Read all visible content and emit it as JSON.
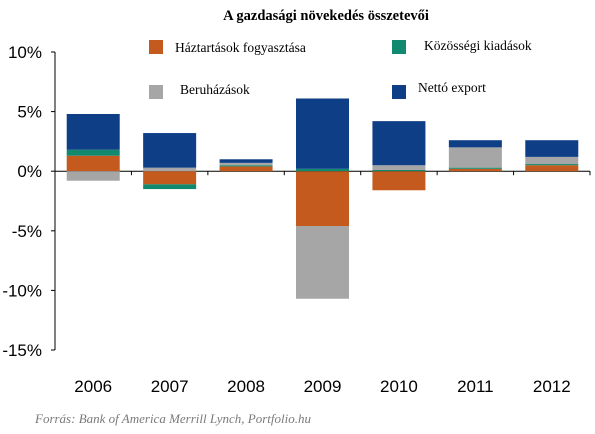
{
  "chart_data": {
    "type": "bar",
    "stacked": true,
    "title": "A gazdasági növekedés összetevői",
    "categories": [
      "2006",
      "2007",
      "2008",
      "2009",
      "2010",
      "2011",
      "2012"
    ],
    "ylim": [
      -15,
      10
    ],
    "yticks": [
      10,
      5,
      0,
      -5,
      -10,
      -15
    ],
    "ytick_labels": [
      "10%",
      "5%",
      "0%",
      "-5%",
      "-10%",
      "-15%"
    ],
    "grid": false,
    "legend_position": "top",
    "series": [
      {
        "name": "Háztartások fogyasztása",
        "color": "#c55a1e",
        "values": [
          1.3,
          -1.1,
          0.4,
          -4.6,
          -1.6,
          0.2,
          0.5
        ]
      },
      {
        "name": "Közösségi kiadások",
        "color": "#10896e",
        "values": [
          0.5,
          -0.4,
          0.1,
          0.2,
          0.1,
          0.1,
          0.1
        ]
      },
      {
        "name": "Beruházások",
        "color": "#a6a6a6",
        "values": [
          -0.8,
          0.3,
          0.2,
          -6.1,
          0.4,
          1.7,
          0.6
        ]
      },
      {
        "name": "Nettó export",
        "color": "#0e3e85",
        "values": [
          3.0,
          2.9,
          0.3,
          5.9,
          3.7,
          0.6,
          1.4
        ]
      }
    ],
    "source": "Forrás: Bank of America Merrill Lynch, Portfolio.hu"
  }
}
